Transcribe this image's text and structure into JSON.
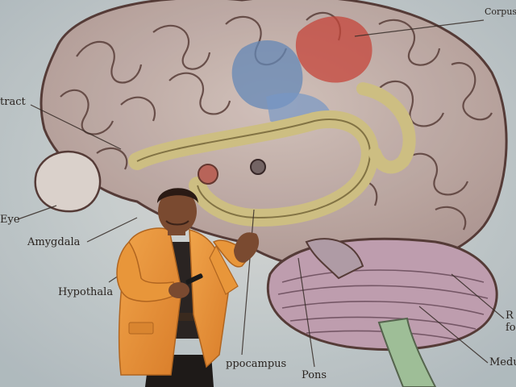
{
  "slide_labels": {
    "corpus_callosum": "Corpus callosu",
    "tract": "tract",
    "eye": "Eye",
    "amygdala": "Amygdala",
    "hypothalamus": "Hypothala",
    "hippocampus": "ppocampus",
    "pons": "Pons",
    "medulla": "Medu",
    "right_cut_1": "R",
    "right_cut_2": "fo"
  },
  "colors": {
    "backdrop": "#cfd6d8",
    "brain_fill": "#c9b8b4",
    "brain_outline": "#5a3f3a",
    "limbic_gold": "#d9c98a",
    "blue_region": "#6a8fc0",
    "red_region": "#d04a3e",
    "jacket": "#e8963a",
    "shirt": "#2a2422",
    "trousers": "#1e1a18",
    "skin": "#7a4a30"
  }
}
